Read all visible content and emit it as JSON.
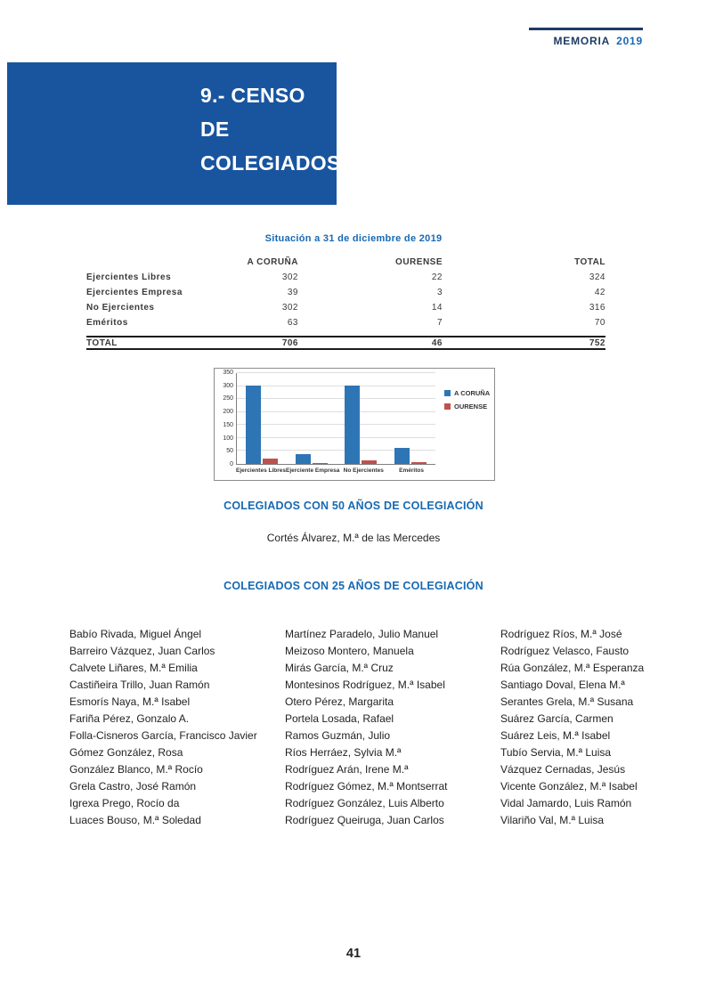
{
  "theme": {
    "accent_blue": "#1769b3",
    "title_box_blue": "#19559f",
    "header_navy": "#1f3b63",
    "table_text": "#3a3a3a"
  },
  "header": {
    "brand": "MEMORIA",
    "year": "2019"
  },
  "title_block": {
    "line1": "9.- CENSO DE",
    "line2": "COLEGIADOS"
  },
  "census_table": {
    "caption": "Situación a 31 de diciembre de 2019",
    "columns": [
      "A CORUÑA",
      "OURENSE",
      "TOTAL"
    ],
    "rows": [
      {
        "label": "Ejercientes Libres",
        "values": [
          "302",
          "22",
          "324"
        ]
      },
      {
        "label": "Ejercientes Empresa",
        "values": [
          "39",
          "3",
          "42"
        ]
      },
      {
        "label": "No Ejercientes",
        "values": [
          "302",
          "14",
          "316"
        ]
      },
      {
        "label": "Eméritos",
        "values": [
          "63",
          "7",
          "70"
        ]
      }
    ],
    "total": {
      "label": "TOTAL",
      "values": [
        "706",
        "46",
        "752"
      ]
    }
  },
  "chart_data": {
    "type": "bar",
    "title": "",
    "categories": [
      "Ejercientes Libres",
      "Ejerciente Empresa",
      "No Ejercientes",
      "Eméritos"
    ],
    "series": [
      {
        "name": "A CORUÑA",
        "color": "#2e75b6",
        "values": [
          302,
          39,
          302,
          63
        ]
      },
      {
        "name": "OURENSE",
        "color": "#c0504d",
        "values": [
          22,
          3,
          14,
          7
        ]
      }
    ],
    "ylim": [
      0,
      350
    ],
    "ytick_interval": 50,
    "grid": true,
    "legend_position": "right"
  },
  "section_50": {
    "heading": "COLEGIADOS CON 50 AÑOS DE COLEGIACIÓN",
    "names": [
      "Cortés Álvarez, M.ª de las Mercedes"
    ]
  },
  "section_25": {
    "heading": "COLEGIADOS CON 25 AÑOS DE COLEGIACIÓN",
    "col1": [
      "Babío Rivada, Miguel Ángel",
      "Barreiro Vázquez, Juan Carlos",
      "Calvete Liñares, M.ª Emilia",
      "Castiñeira Trillo, Juan Ramón",
      "Esmorís Naya, M.ª Isabel",
      "Fariña Pérez, Gonzalo A.",
      "Folla-Cisneros García, Francisco Javier",
      "Gómez González, Rosa",
      "González Blanco, M.ª Rocío",
      "Grela Castro, José Ramón",
      "Igrexa Prego, Rocío da",
      "Luaces Bouso, M.ª Soledad"
    ],
    "col2": [
      "Martínez Paradelo, Julio Manuel",
      "Meizoso Montero, Manuela",
      "Mirás García, M.ª Cruz",
      "Montesinos Rodríguez, M.ª Isabel",
      "Otero Pérez, Margarita",
      "Portela Losada, Rafael",
      "Ramos Guzmán, Julio",
      "Ríos Herráez, Sylvia M.ª",
      "Rodríguez Arán, Irene M.ª",
      "Rodríguez Gómez, M.ª Montserrat",
      "Rodríguez González, Luis Alberto",
      "Rodríguez Queiruga, Juan Carlos"
    ],
    "col3": [
      "Rodríguez Ríos, M.ª José",
      "Rodríguez Velasco, Fausto",
      "Rúa González, M.ª Esperanza",
      "Santiago Doval, Elena M.ª",
      "Serantes Grela, M.ª Susana",
      "Suárez García, Carmen",
      "Suárez Leis, M.ª Isabel",
      "Tubío Servia, M.ª Luisa",
      "Vázquez Cernadas, Jesús",
      "Vicente González, M.ª Isabel",
      "Vidal Jamardo, Luis Ramón",
      "Vilariño Val, M.ª Luisa"
    ]
  },
  "footer": {
    "page_number": "41"
  }
}
